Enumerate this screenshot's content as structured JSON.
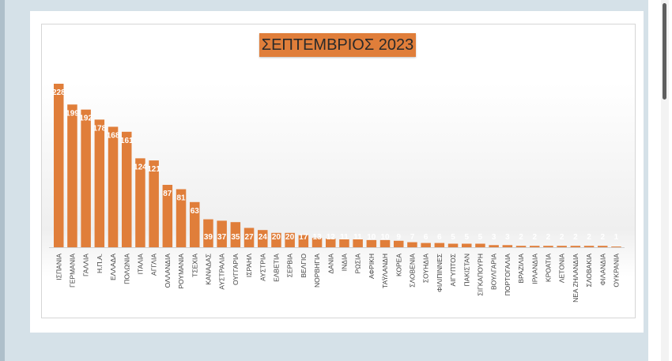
{
  "chart_data": {
    "type": "bar",
    "title": "ΣΕΠΤΕΜΒΡΙΟΣ 2023",
    "xlabel": "",
    "ylabel": "",
    "ylim": [
      0,
      228
    ],
    "grid": false,
    "legend": "none",
    "bar_color": "#e07e3a",
    "categories": [
      "ΙΣΠΑΝΙΑ",
      "ΓΕΡΜΑΝΙΑ",
      "ΓΑΛΛΙΑ",
      "Η.Π.Α.",
      "ΕΛΛΑΔΑ",
      "ΠΟΛΩΝΙΑ",
      "ΙΤΑΛΙΑ",
      "ΑΓΓΛΙΑ",
      "ΟΛΛΑΝΔΙΑ",
      "ΡΟΥΜΑΝΙΑ",
      "ΤΣΕΧΙΑ",
      "ΚΑΝΑΔΑΣ",
      "ΑΥΣΤΡΑΛΙΑ",
      "ΟΥΓΓΑΡΙΑ",
      "ΙΣΡΑΗΛ",
      "ΑΥΣΤΡΙΑ",
      "ΕΛΒΕΤΙΑ",
      "ΣΕΡΒΙΑ",
      "ΒΕΛΓΙΟ",
      "ΝΟΡΒΗΓΙΑ",
      "ΔΑΝΙΑ",
      "ΙΝΔΙΑ",
      "ΡΩΣΙΑ",
      "ΑΦΡΙΚΗ",
      "ΤΑΫΛΑΝΔΗ",
      "ΚΟΡΕΑ",
      "ΣΛΟΒΕΝΙΑ",
      "ΣΟΥΗΔΙΑ",
      "ΦΙΛΙΠΙΝΝΕΣ",
      "ΑΙΓΥΠΤΟΣ",
      "ΠΑΚΙΣΤΑΝ",
      "ΣΙΓΚΑΠΟΥΡΗ",
      "ΒΟΥΛΓΑΡΙΑ",
      "ΠΟΡΤΟΓΑΛΙΑ",
      "ΒΡΑΖΙΛΙΑ",
      "ΙΡΛΑΝΔΙΑ",
      "ΚΡΟΑΤΙΑ",
      "ΛΕΤΟΝΙΑ",
      "ΝΕΑ ΖΗΛΑΝΔΙΑ",
      "ΣΛΟΒΑΚΙΑ",
      "ΦΙΛΑΝΔΙΑ",
      "ΟΥΚΡΑΝΙΑ"
    ],
    "values": [
      228,
      199,
      192,
      178,
      168,
      161,
      124,
      121,
      87,
      81,
      63,
      39,
      37,
      35,
      27,
      24,
      20,
      20,
      17,
      13,
      12,
      11,
      11,
      10,
      10,
      9,
      7,
      6,
      6,
      5,
      5,
      5,
      3,
      3,
      2,
      2,
      2,
      2,
      2,
      2,
      2,
      1
    ]
  }
}
